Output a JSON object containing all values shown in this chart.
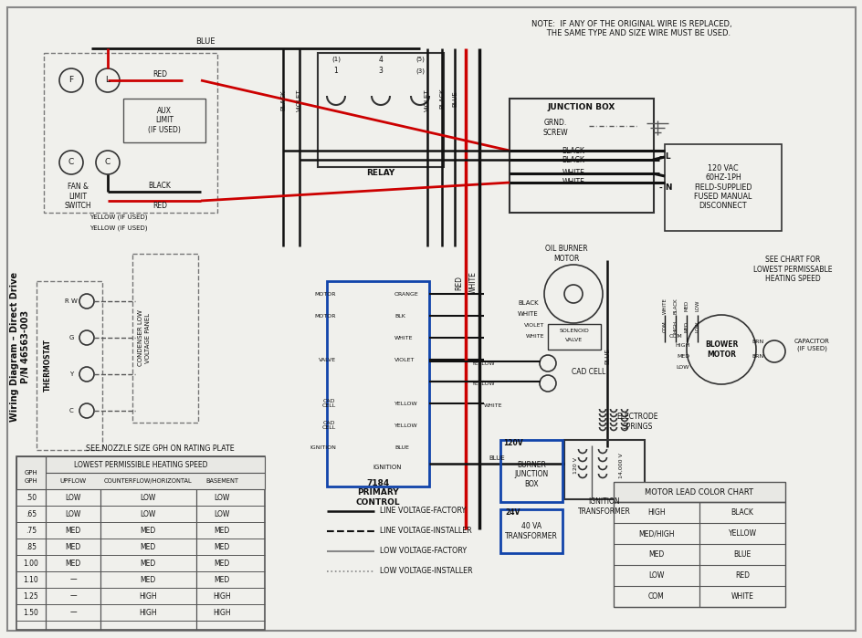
{
  "title": "Wiring Diagram – Direct Drive\nP/N 46563-003",
  "bg_color": "#f0f0ec",
  "note_text": "NOTE:  IF ANY OF THE ORIGINAL WIRE IS REPLACED,\n      THE SAME TYPE AND SIZE WIRE MUST BE USED.",
  "heating_table_title": "SEE NOZZLE SIZE GPH ON RATING PLATE",
  "heating_table_sub": "LOWEST PERMISSIBLE HEATING SPEED",
  "heating_table_data": [
    [
      ".50",
      "LOW",
      "LOW",
      "LOW"
    ],
    [
      ".65",
      "LOW",
      "LOW",
      "LOW"
    ],
    [
      ".75",
      "MED",
      "MED",
      "MED"
    ],
    [
      ".85",
      "MED",
      "MED",
      "MED"
    ],
    [
      "1.00",
      "MED",
      "MED",
      "MED"
    ],
    [
      "1.10",
      "—",
      "MED",
      "MED"
    ],
    [
      "1.25",
      "—",
      "HIGH",
      "HIGH"
    ],
    [
      "1.50",
      "—",
      "HIGH",
      "HIGH"
    ]
  ],
  "motor_table_title": "MOTOR LEAD COLOR CHART",
  "motor_table_data": [
    [
      "HIGH",
      "BLACK"
    ],
    [
      "MED/HIGH",
      "YELLOW"
    ],
    [
      "MED",
      "BLUE"
    ],
    [
      "LOW",
      "RED"
    ],
    [
      "COM",
      "WHITE"
    ]
  ],
  "legend_items": [
    {
      "label": "LINE VOLTAGE-FACTORY",
      "style": "-",
      "color": "#111111",
      "lw": 1.8
    },
    {
      "label": "LINE VOLTAGE-INSTALLER",
      "style": "--",
      "color": "#111111",
      "lw": 1.5
    },
    {
      "label": "LOW VOLTAGE-FACTORY",
      "style": "-",
      "color": "#888888",
      "lw": 1.5
    },
    {
      "label": "LOW VOLTAGE-INSTALLER",
      "style": ":",
      "color": "#888888",
      "lw": 1.2
    }
  ],
  "junction_box_label": "JUNCTION BOX",
  "grnd_screw_label": "GRND.\nSCREW",
  "disconnect_label": "120 VAC\n60HZ-1PH\nFIELD-SUPPLIED\nFUSED MANUAL\nDISCONNECT",
  "relay_label": "RELAY",
  "fan_limit_label": "FAN &\nLIMIT\nSWITCH",
  "aux_limit_label": "AUX\nLIMIT\n(IF USED)",
  "thermostat_label": "THERMOSTAT",
  "condenser_label": "CONDENSER LOW\nVOLTAGE PANEL",
  "primary_control_label": "7184\nPRIMARY\nCONTROL",
  "oil_burner_label": "OIL BURNER\nMOTOR",
  "solenoid_label": "SOLENOID\nVALVE",
  "cad_cell_label": "CAD CELL",
  "blower_motor_label": "BLOWER\nMOTOR",
  "capacitor_label": "CAPACITOR\n(IF USED)",
  "electrode_label": "ELECTRODE\nSPRINGS",
  "ignition_transformer_label": "IGNITION\nTRANSFORMER",
  "burner_junction_label": "BURNER\nJUNCTION\nBOX",
  "transformer_label": "40 VA\nTRANSFORMER",
  "heating_speed_note": "SEE CHART FOR\nLOWEST PERMISSABLE\nHEATING SPEED"
}
